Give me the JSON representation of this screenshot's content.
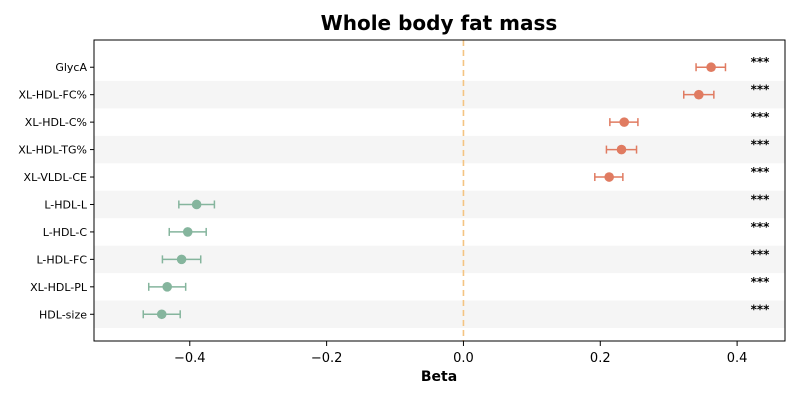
{
  "chart_data": {
    "type": "scatter",
    "title": "Whole body fat mass",
    "xlabel": "Beta",
    "ylabel": "",
    "xlim": [
      -0.54,
      0.47
    ],
    "xticks": [
      -0.4,
      -0.2,
      0.0,
      0.2,
      0.4
    ],
    "xtick_labels": [
      "−0.4",
      "−0.2",
      "0.0",
      "0.2",
      "0.4"
    ],
    "reference_line": 0.0,
    "grid": false,
    "categories": [
      "GlycA",
      "XL-HDL-FC%",
      "XL-HDL-C%",
      "XL-HDL-TG%",
      "XL-VLDL-CE",
      "L-HDL-L",
      "L-HDL-C",
      "L-HDL-FC",
      "XL-HDL-PL",
      "HDL-size"
    ],
    "beta": [
      0.362,
      0.344,
      0.235,
      0.231,
      0.213,
      -0.39,
      -0.403,
      -0.412,
      -0.433,
      -0.441
    ],
    "ci_low": [
      0.34,
      0.322,
      0.214,
      0.209,
      0.192,
      -0.416,
      -0.43,
      -0.44,
      -0.46,
      -0.468
    ],
    "ci_high": [
      0.383,
      0.366,
      0.255,
      0.253,
      0.233,
      -0.364,
      -0.376,
      -0.384,
      -0.406,
      -0.414
    ],
    "significance": [
      "***",
      "***",
      "***",
      "***",
      "***",
      "***",
      "***",
      "***",
      "***",
      "***"
    ],
    "colors": {
      "positive": "#e07b61",
      "negative": "#85b59d",
      "reference_line": "#f4c483",
      "row_band": "#f5f5f5"
    }
  }
}
